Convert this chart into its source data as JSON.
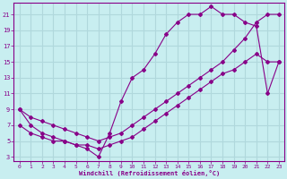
{
  "xlabel": "Windchill (Refroidissement éolien,°C)",
  "background_color": "#c8eef0",
  "grid_color": "#b0d8dc",
  "line_color": "#880088",
  "xlim": [
    -0.5,
    23.5
  ],
  "ylim": [
    2.5,
    22.5
  ],
  "xticks": [
    0,
    1,
    2,
    3,
    4,
    5,
    6,
    7,
    8,
    9,
    10,
    11,
    12,
    13,
    14,
    15,
    16,
    17,
    18,
    19,
    20,
    21,
    22,
    23
  ],
  "yticks": [
    3,
    5,
    7,
    9,
    11,
    13,
    15,
    17,
    19,
    21
  ],
  "line1_x": [
    0,
    1,
    2,
    3,
    4,
    5,
    6,
    7,
    8,
    9,
    10,
    11,
    12,
    13,
    14,
    15,
    16,
    17,
    18,
    19,
    20,
    21,
    22,
    23
  ],
  "line1_y": [
    9,
    7,
    6,
    5.5,
    5,
    4.5,
    4,
    3,
    6,
    10,
    13,
    14,
    16,
    18.5,
    20,
    21,
    21,
    22,
    21,
    21,
    20,
    19.5,
    11,
    15
  ],
  "line2_x": [
    0,
    1,
    2,
    3,
    4,
    5,
    6,
    7,
    8,
    9,
    10,
    11,
    12,
    13,
    14,
    15,
    16,
    17,
    18,
    19,
    20,
    21,
    22,
    23
  ],
  "line2_y": [
    9,
    8,
    7.5,
    7,
    6.5,
    6,
    5.5,
    5,
    5.5,
    6,
    7,
    8,
    9,
    10,
    11,
    12,
    13,
    14,
    15,
    16.5,
    18,
    20,
    21,
    21
  ],
  "line3_x": [
    0,
    1,
    2,
    3,
    4,
    5,
    6,
    7,
    8,
    9,
    10,
    11,
    12,
    13,
    14,
    15,
    16,
    17,
    18,
    19,
    20,
    21,
    22,
    23
  ],
  "line3_y": [
    7,
    6,
    5.5,
    5,
    5,
    4.5,
    4.5,
    4,
    4.5,
    5,
    5.5,
    6.5,
    7.5,
    8.5,
    9.5,
    10.5,
    11.5,
    12.5,
    13.5,
    14,
    15,
    16,
    15,
    15
  ]
}
